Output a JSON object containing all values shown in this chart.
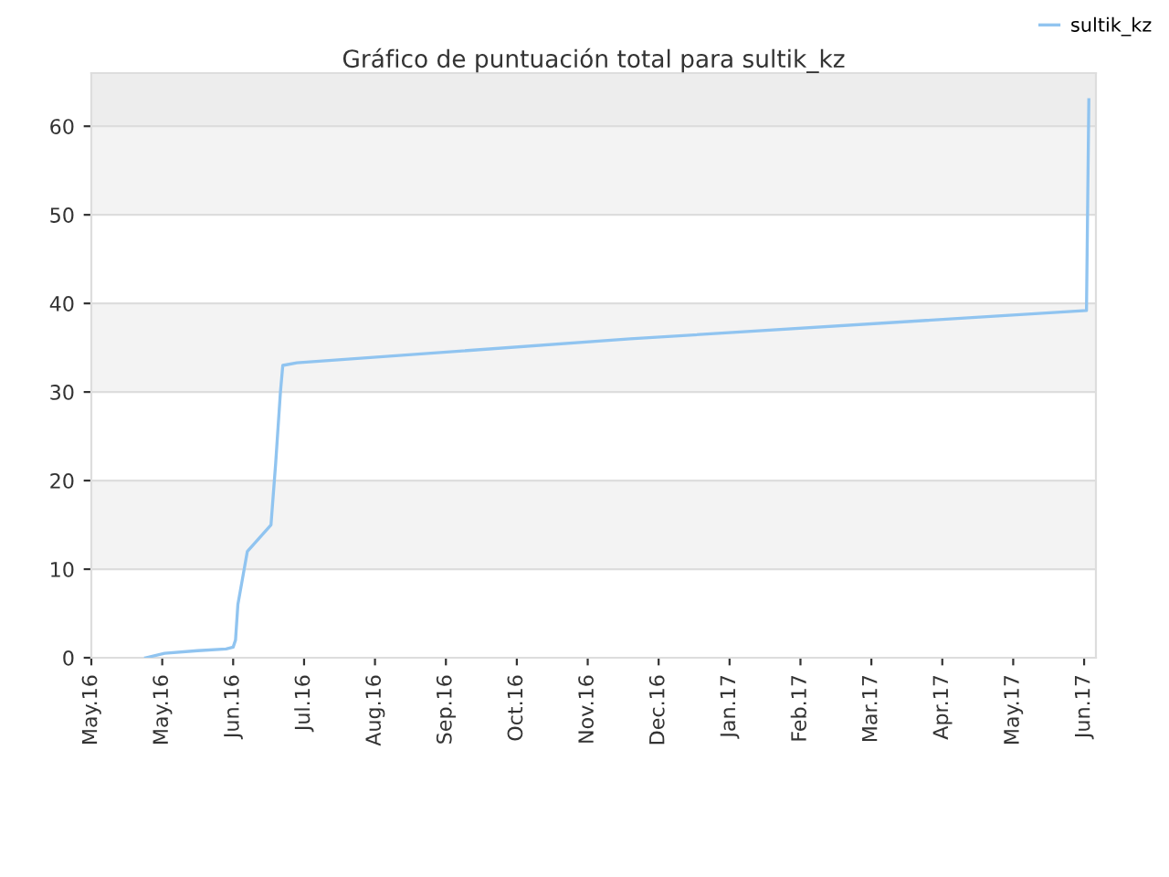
{
  "chart_data": {
    "type": "line",
    "title": "Gráfico de puntuación total para sultik_kz",
    "x": [
      "2016-05-24",
      "2016-06-01",
      "2016-06-15",
      "2016-06-27",
      "2016-06-30",
      "2016-07-01",
      "2016-07-02",
      "2016-07-04",
      "2016-07-06",
      "2016-07-16",
      "2016-07-18",
      "2016-07-20",
      "2016-07-21",
      "2016-07-27",
      "2016-12-15",
      "2017-06-26",
      "2017-06-27"
    ],
    "series": [
      {
        "name": "sultik_kz",
        "color": "#90c4f0",
        "values": [
          0,
          0.5,
          0.8,
          1.0,
          1.2,
          2,
          6,
          9,
          12,
          15,
          22,
          30,
          33,
          33.3,
          36,
          39.2,
          63
        ]
      }
    ],
    "xlim": [
      "2016-05-01",
      "2017-06-30"
    ],
    "xticks": [
      {
        "value": "2016-05-01",
        "label": "May.16"
      },
      {
        "value": "2016-05-31",
        "label": "May.16"
      },
      {
        "value": "2016-06-30",
        "label": "Jun.16"
      },
      {
        "value": "2016-07-30",
        "label": "Jul.16"
      },
      {
        "value": "2016-08-29",
        "label": "Aug.16"
      },
      {
        "value": "2016-09-28",
        "label": "Sep.16"
      },
      {
        "value": "2016-10-28",
        "label": "Oct.16"
      },
      {
        "value": "2016-11-27",
        "label": "Nov.16"
      },
      {
        "value": "2016-12-27",
        "label": "Dec.16"
      },
      {
        "value": "2017-01-26",
        "label": "Jan.17"
      },
      {
        "value": "2017-02-25",
        "label": "Feb.17"
      },
      {
        "value": "2017-03-27",
        "label": "Mar.17"
      },
      {
        "value": "2017-04-26",
        "label": "Apr.17"
      },
      {
        "value": "2017-05-26",
        "label": "May.17"
      },
      {
        "value": "2017-06-25",
        "label": "Jun.17"
      }
    ],
    "ylim": [
      0,
      66
    ],
    "yticks": [
      0,
      10,
      20,
      30,
      40,
      50,
      60
    ],
    "bands": [
      {
        "axis": "y",
        "from": 10,
        "to": 20,
        "color": "#f3f3f3"
      },
      {
        "axis": "y",
        "from": 30,
        "to": 40,
        "color": "#f3f3f3"
      },
      {
        "axis": "y",
        "from": 50,
        "to": 60,
        "color": "#f3f3f3"
      },
      {
        "axis": "y",
        "from": 60,
        "to": 66,
        "color": "#ededed"
      }
    ],
    "grid": "y",
    "legend": "top right",
    "marker": "none",
    "line_style": "solid"
  }
}
